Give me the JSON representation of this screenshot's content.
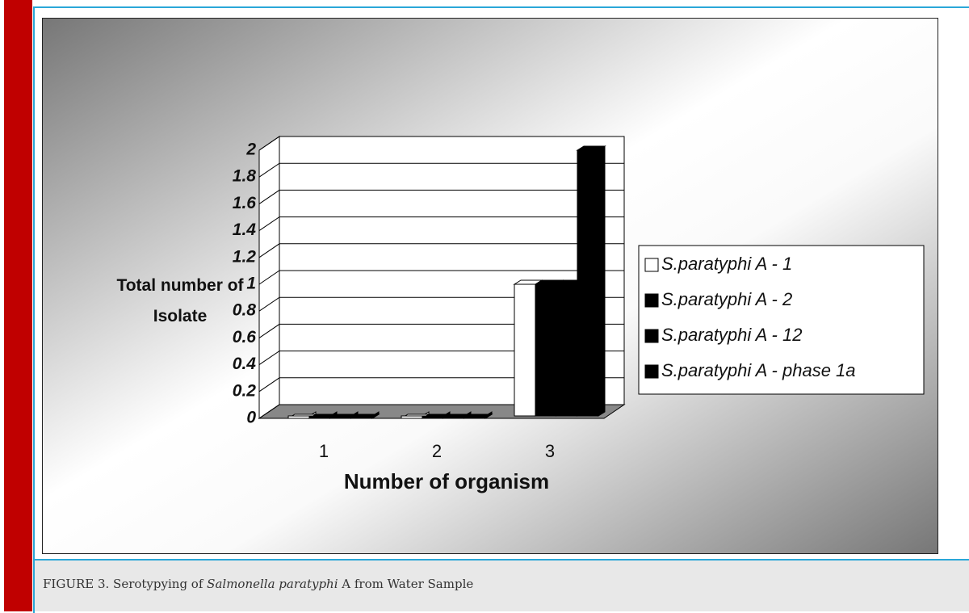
{
  "chart_data": {
    "type": "bar3d",
    "categories": [
      "1",
      "2",
      "3"
    ],
    "series": [
      {
        "name": "S.paratyphi A - 1",
        "color": "#ffffff",
        "values": [
          0,
          0,
          1
        ]
      },
      {
        "name": "S.paratyphi A - 2",
        "color": "#000000",
        "values": [
          0,
          0,
          1
        ]
      },
      {
        "name": "S.paratyphi A - 12",
        "color": "#000000",
        "values": [
          0,
          0,
          1
        ]
      },
      {
        "name": "S.paratyphi A - phase 1a",
        "color": "#000000",
        "values": [
          0,
          0,
          2
        ]
      }
    ],
    "ylim": [
      0,
      2
    ],
    "yticks": [
      0,
      0.2,
      0.4,
      0.6,
      0.8,
      1,
      1.2,
      1.4,
      1.6,
      1.8,
      2
    ],
    "xlabel": "Number of organism",
    "ylabel": "Total number of Isolate",
    "grid": true,
    "legend": "right"
  },
  "caption": {
    "label": "FIGURE 3. Serotypying of ",
    "species": "Salmonella paratyphi",
    "rest": " A from Water Sample"
  }
}
